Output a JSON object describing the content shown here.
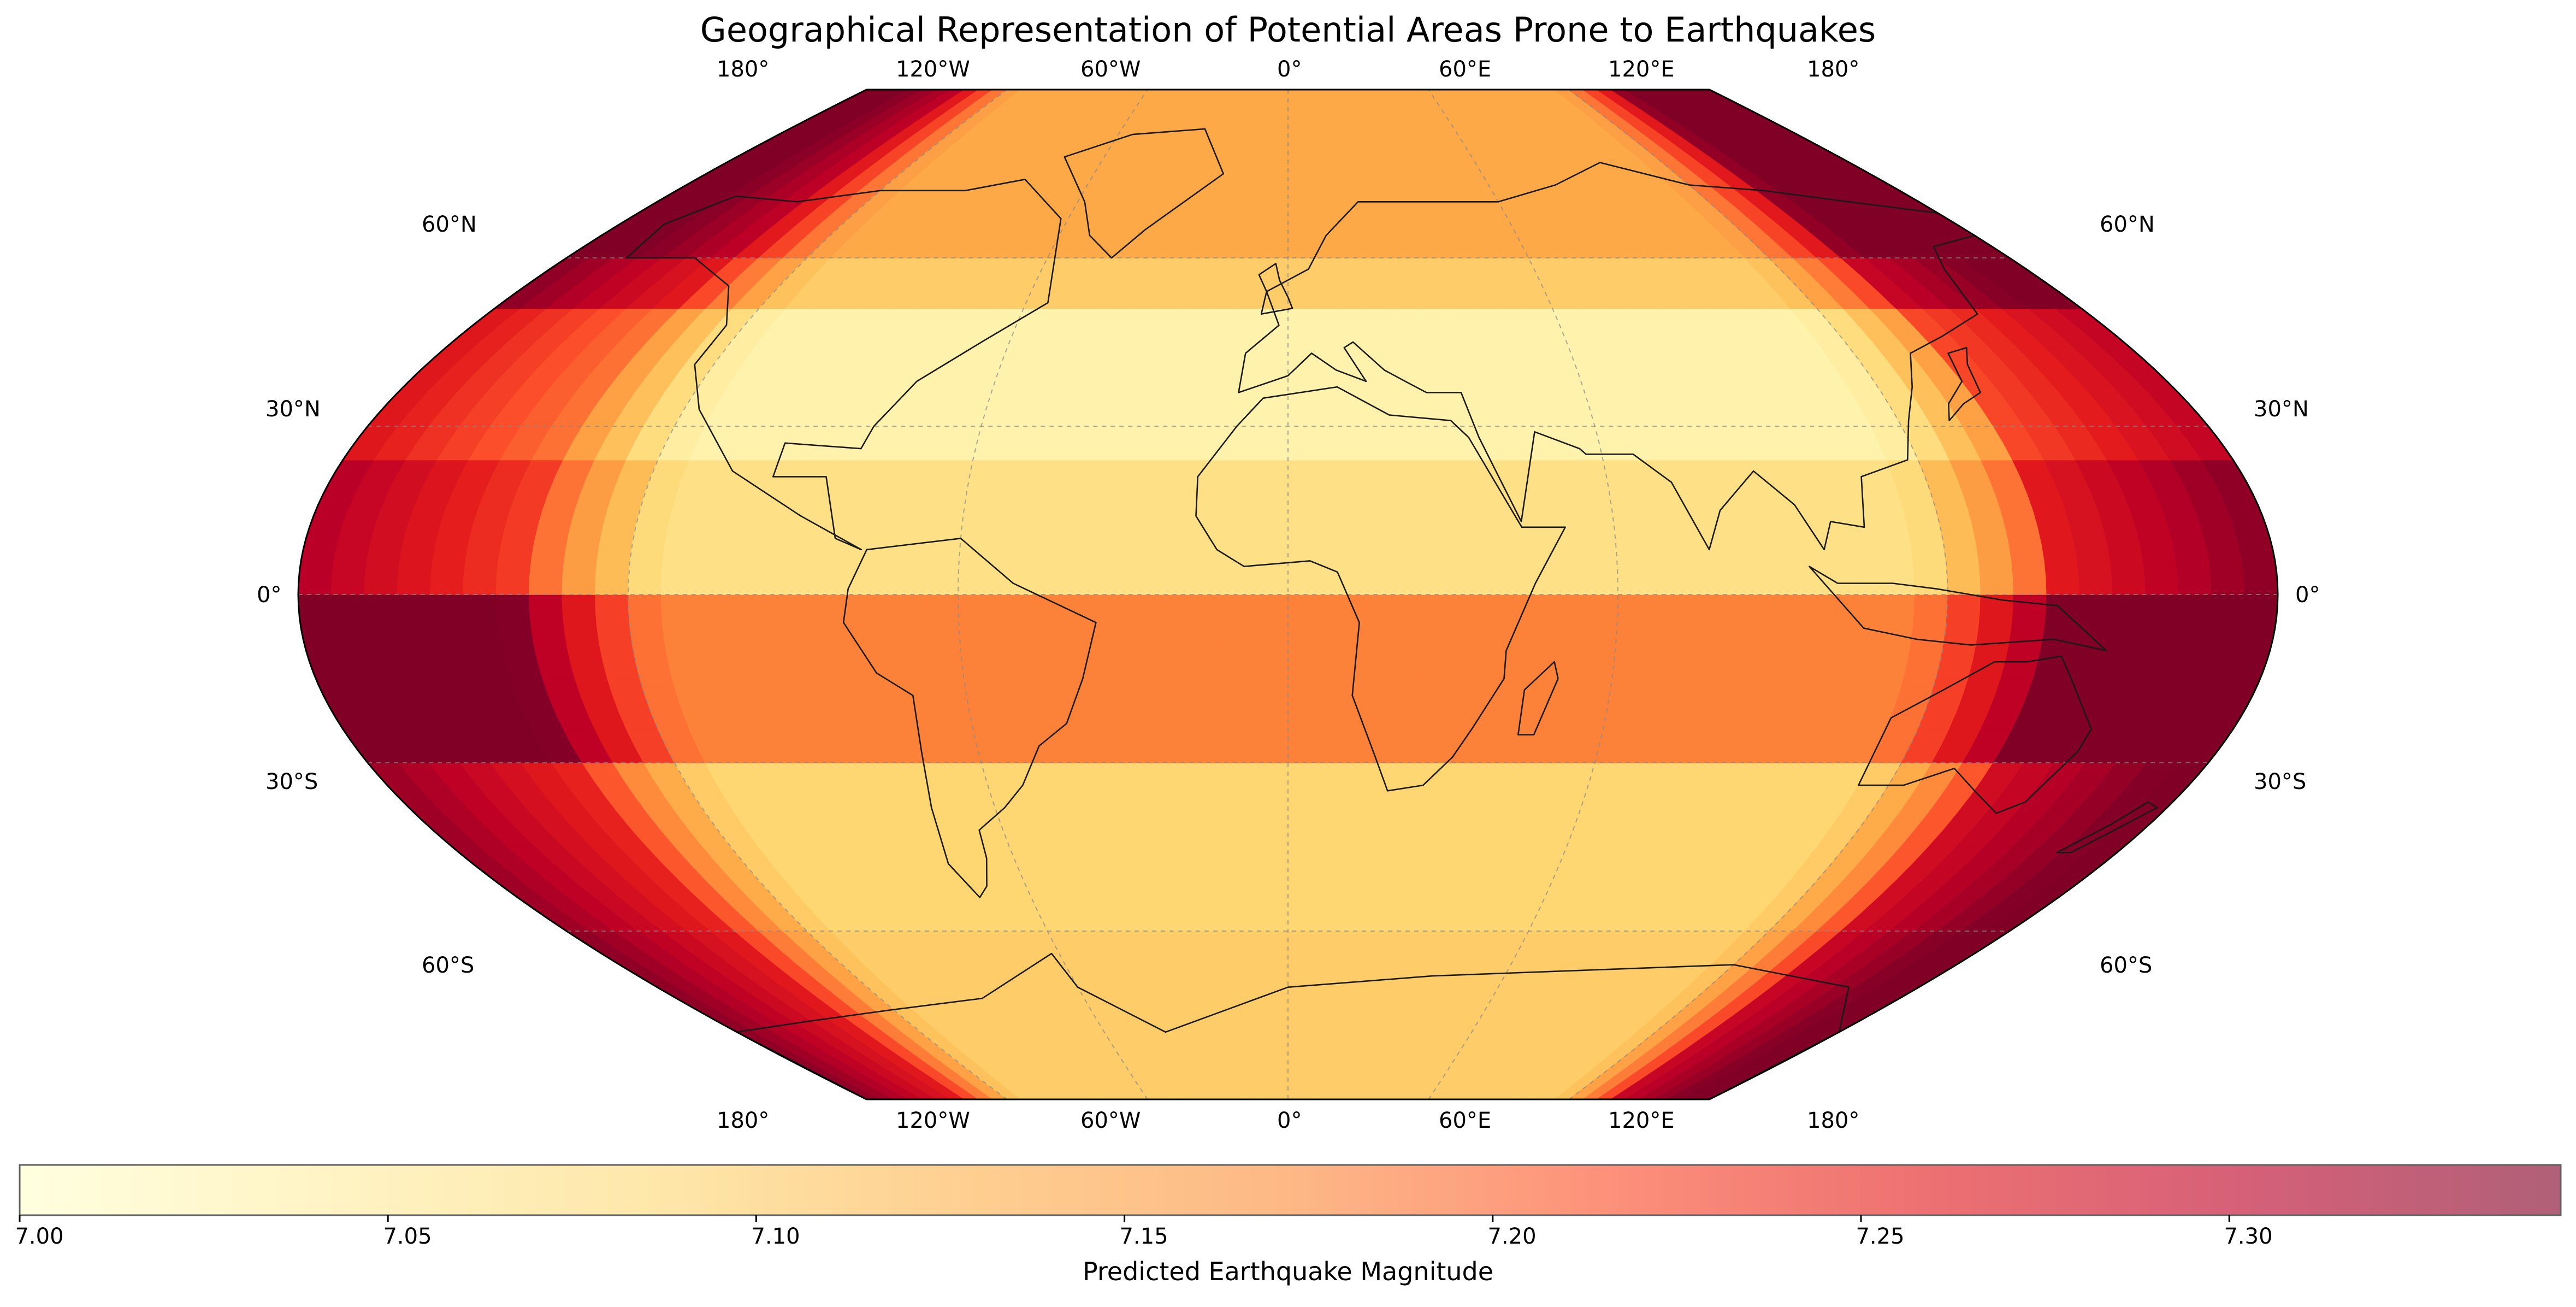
{
  "figure": {
    "title": "Geographical Representation of Potential Areas Prone to Earthquakes"
  },
  "map": {
    "projection": "Robinson",
    "central_longitude": 0,
    "lon_labels_top": [
      "180°",
      "120°W",
      "60°W",
      "0°",
      "60°E",
      "120°E",
      "180°"
    ],
    "lon_labels_bottom": [
      "180°",
      "120°W",
      "60°W",
      "0°",
      "60°E",
      "120°E",
      "180°"
    ],
    "lat_labels_left": [
      "60°N",
      "30°N",
      "0°",
      "30°S",
      "60°S"
    ],
    "lat_labels_right": [
      "60°N",
      "30°N",
      "0°",
      "30°S",
      "60°S"
    ],
    "gridlines": "dashed gray",
    "coastlines": true,
    "country_borders": true
  },
  "chart_data": {
    "type": "heatmap",
    "title": "Geographical Representation of Potential Areas Prone to Earthquakes",
    "colormap": "YlOrRd",
    "value_label": "Predicted Earthquake Magnitude",
    "value_range": [
      7.0,
      7.345
    ],
    "colorbar_ticks": [
      "7.00",
      "7.05",
      "7.10",
      "7.15",
      "7.20",
      "7.25",
      "7.30"
    ],
    "colorbar_tick_values": [
      7.0,
      7.05,
      7.1,
      7.15,
      7.2,
      7.25,
      7.3
    ],
    "lat_bands": [
      {
        "lat_range": [
          60,
          90
        ],
        "value": 7.14
      },
      {
        "lat_range": [
          50,
          60
        ],
        "value": 7.1
      },
      {
        "lat_range": [
          25,
          50
        ],
        "value": 7.03
      },
      {
        "lat_range": [
          0,
          25
        ],
        "value": 7.07
      },
      {
        "lat_range": [
          -30,
          0
        ],
        "value": 7.18
      },
      {
        "lat_range": [
          -60,
          -30
        ],
        "value": 7.09
      },
      {
        "lat_range": [
          -90,
          -60
        ],
        "value": 7.1
      }
    ],
    "lon_effect": "magnitude increases toward the map edges near 180°, highest in the far east near 150°E–180°",
    "legend_position": "bottom"
  },
  "colorbar": {
    "label": "Predicted Earthquake Magnitude",
    "colors": [
      "#ffffcc",
      "#ffeda0",
      "#fed976",
      "#feb24c",
      "#fd8d3c",
      "#fc4e2a",
      "#e31a1c",
      "#bd0026",
      "#800026"
    ]
  }
}
